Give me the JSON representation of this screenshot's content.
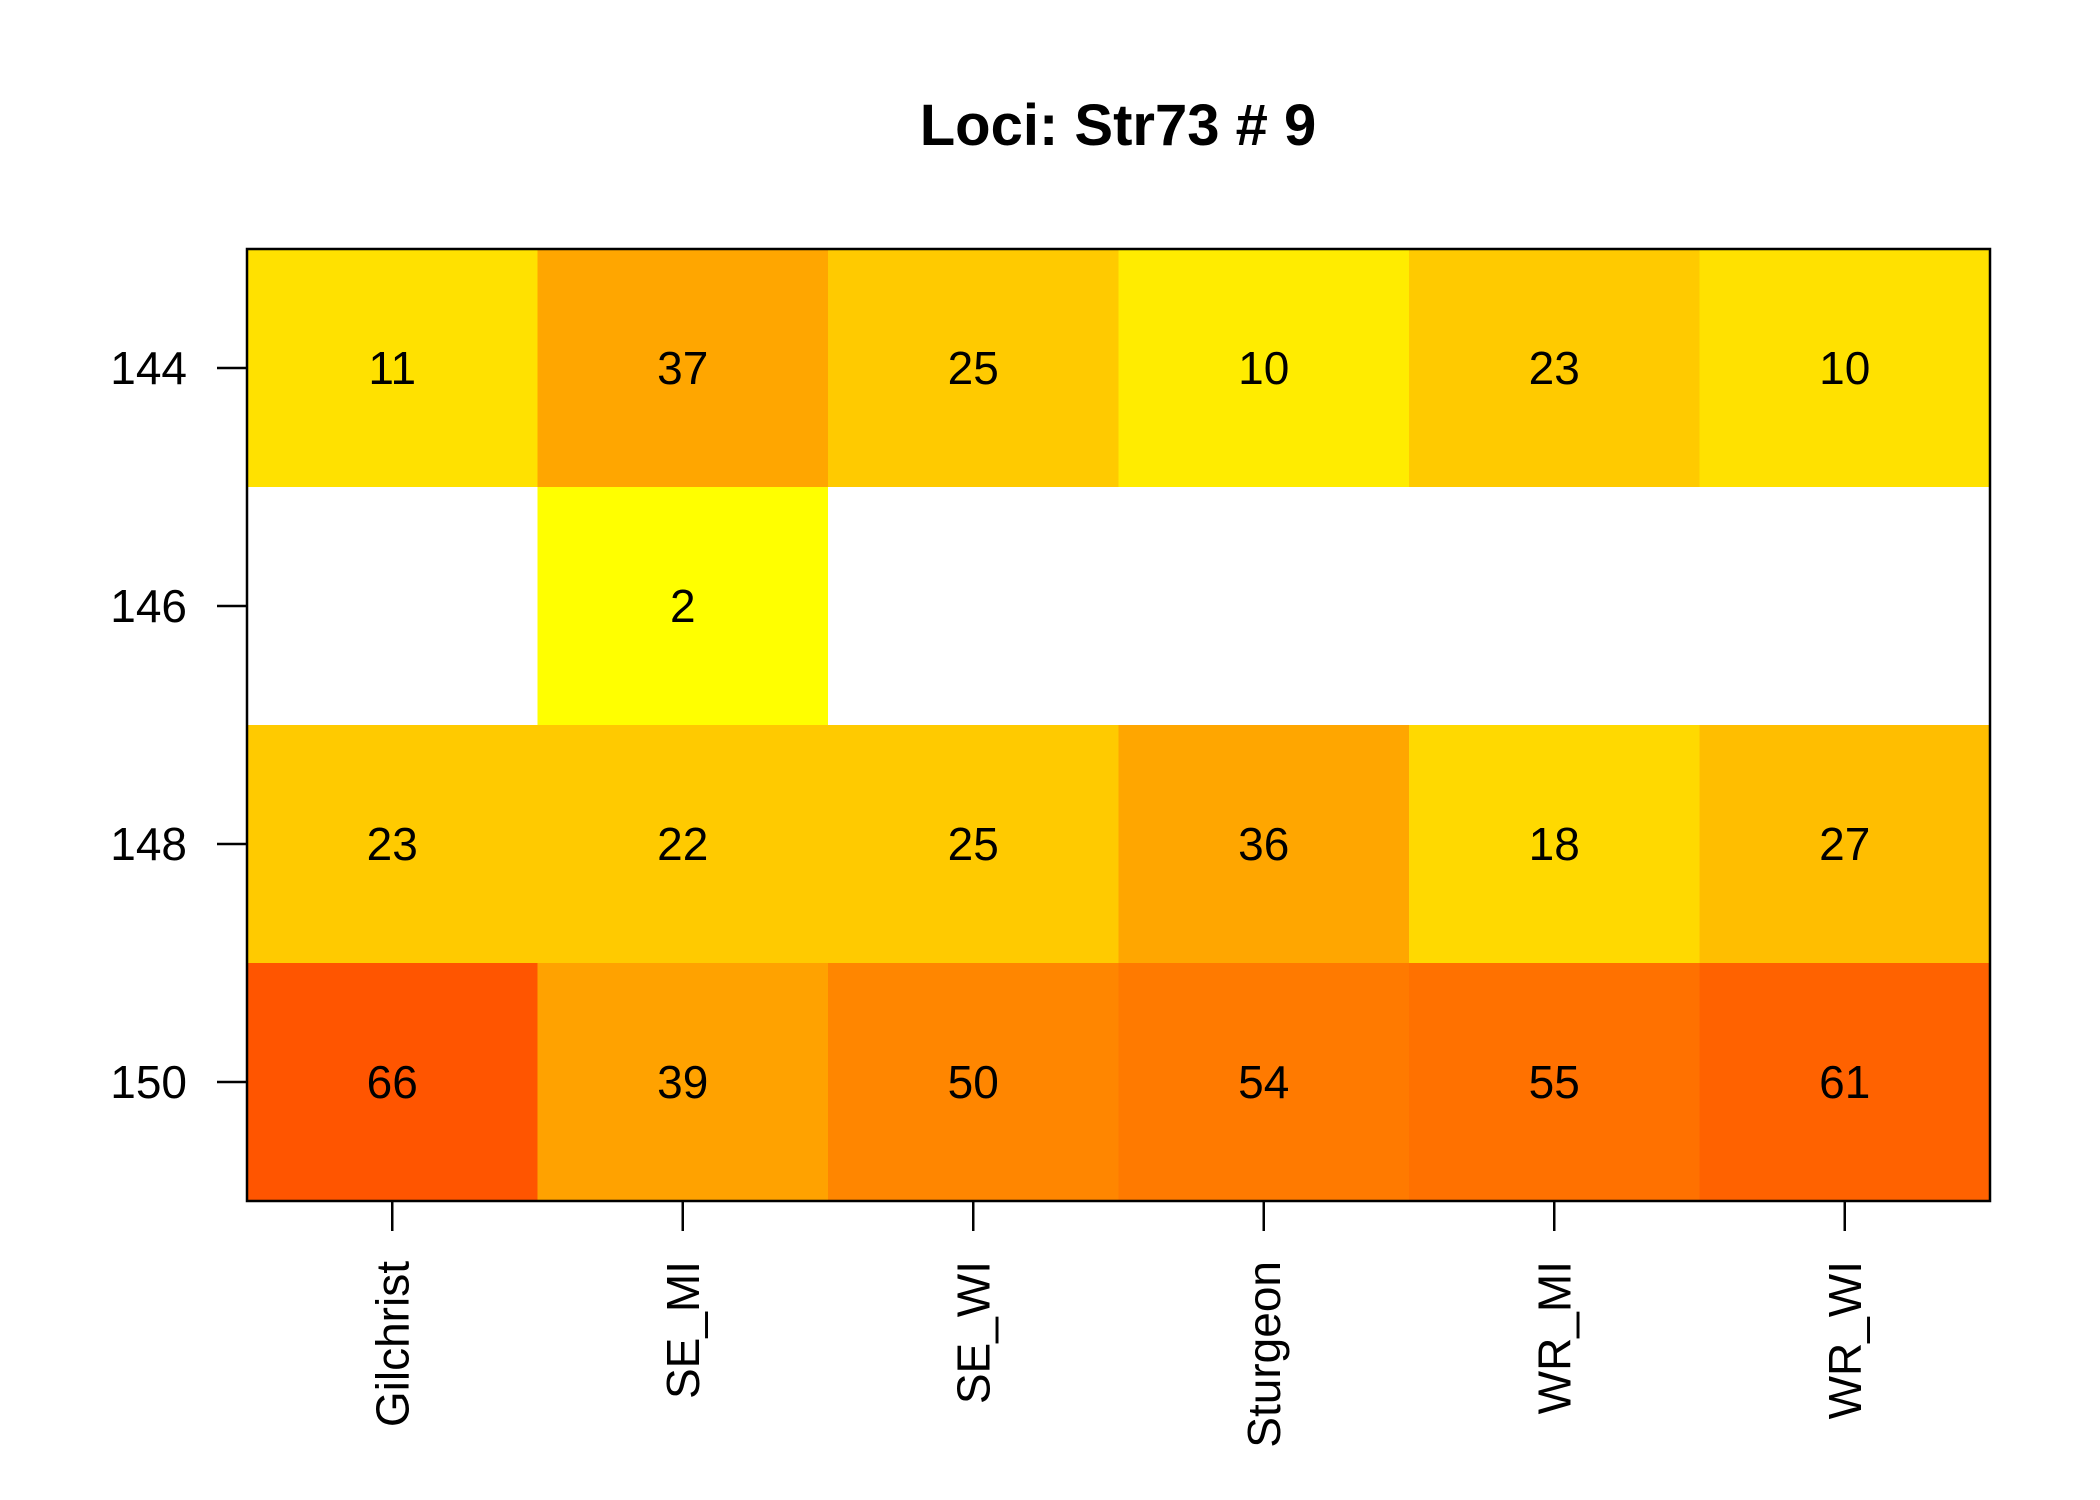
{
  "chart_data": {
    "type": "heatmap",
    "title": "Loci: Str73 # 9",
    "xlabel": "",
    "ylabel": "",
    "columns": [
      "Gilchrist",
      "SE_MI",
      "SE_WI",
      "Sturgeon",
      "WR_MI",
      "WR_WI"
    ],
    "rows": [
      "144",
      "146",
      "148",
      "150"
    ],
    "values": [
      [
        11,
        37,
        25,
        10,
        23,
        10
      ],
      [
        null,
        2,
        null,
        null,
        null,
        null
      ],
      [
        23,
        22,
        25,
        36,
        18,
        27
      ],
      [
        66,
        39,
        50,
        54,
        55,
        61
      ]
    ],
    "colors": [
      [
        "#FFE100",
        "#FFA600",
        "#FFCA00",
        "#FFEC00",
        "#FFCA00",
        "#FFE100"
      ],
      [
        null,
        "#FFFF00",
        null,
        null,
        null,
        null
      ],
      [
        "#FFCA00",
        "#FFCA00",
        "#FFCA00",
        "#FFA600",
        "#FFD900",
        "#FFBE00"
      ],
      [
        "#FF5500",
        "#FFA200",
        "#FF8600",
        "#FF7A00",
        "#FF7100",
        "#FF6200"
      ]
    ],
    "empty_cell_color": "#FFFFFF",
    "grid": false,
    "legend": "none"
  }
}
